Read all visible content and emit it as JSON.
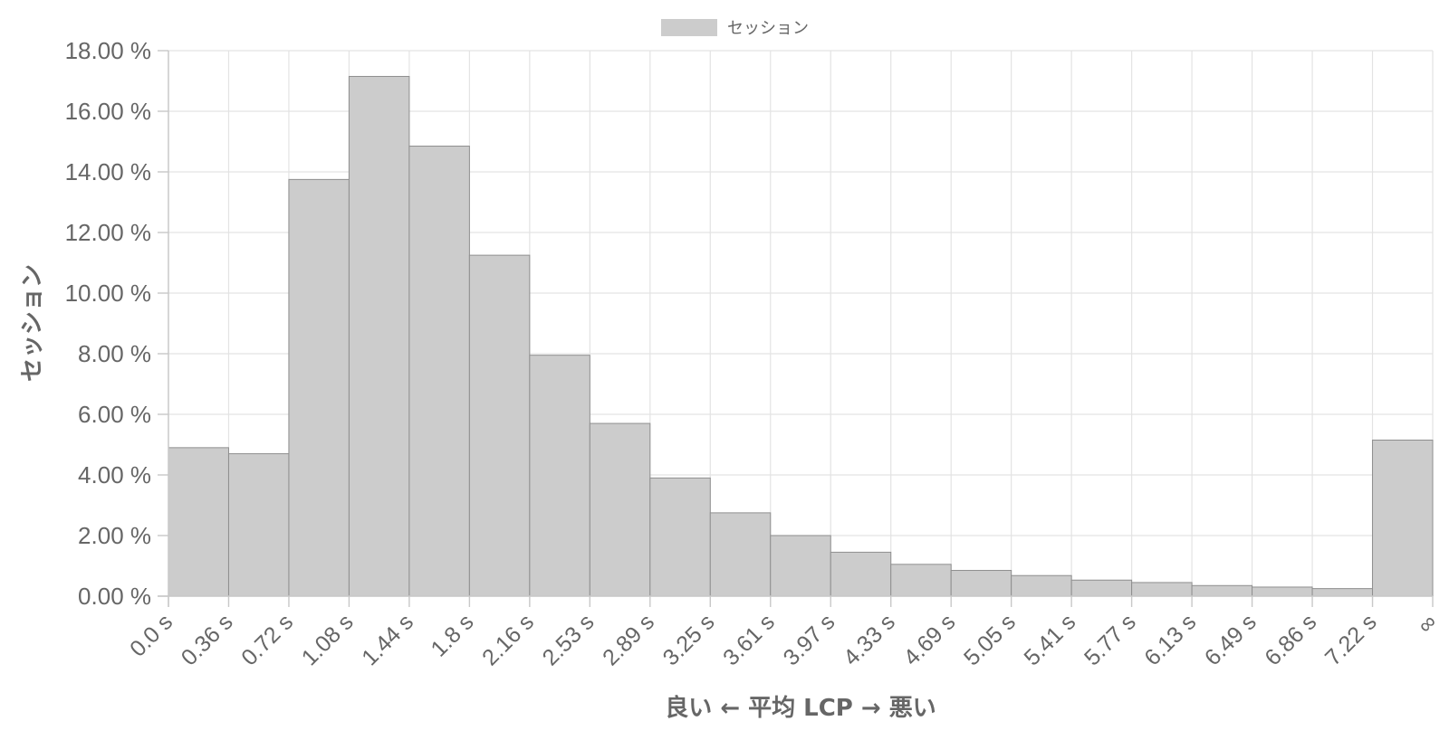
{
  "chart_data": {
    "type": "bar",
    "legend": {
      "label": "セッション",
      "position": "top-center",
      "swatch_color": "#cccccc"
    },
    "xlabel": "良い ← 平均 LCP → 悪い",
    "ylabel": "セッション",
    "ylim": [
      0,
      18
    ],
    "y_ticks": [
      {
        "value": 0,
        "label": "0.00 %"
      },
      {
        "value": 2,
        "label": "2.00 %"
      },
      {
        "value": 4,
        "label": "4.00 %"
      },
      {
        "value": 6,
        "label": "6.00 %"
      },
      {
        "value": 8,
        "label": "8.00 %"
      },
      {
        "value": 10,
        "label": "10.00 %"
      },
      {
        "value": 12,
        "label": "12.00 %"
      },
      {
        "value": 14,
        "label": "14.00 %"
      },
      {
        "value": 16,
        "label": "16.00 %"
      },
      {
        "value": 18,
        "label": "18.00 %"
      }
    ],
    "x_edges": [
      "0.0 s",
      "0.36 s",
      "0.72 s",
      "1.08 s",
      "1.44 s",
      "1.8 s",
      "2.16 s",
      "2.53 s",
      "2.89 s",
      "3.25 s",
      "3.61 s",
      "3.97 s",
      "4.33 s",
      "4.69 s",
      "5.05 s",
      "5.41 s",
      "5.77 s",
      "6.13 s",
      "6.49 s",
      "6.86 s",
      "7.22 s",
      "∞"
    ],
    "series": [
      {
        "name": "セッション",
        "color": "#cccccc",
        "border_color": "#8f8f8f",
        "values": [
          4.9,
          4.7,
          13.75,
          17.15,
          14.85,
          11.25,
          7.95,
          5.7,
          3.9,
          2.75,
          2.0,
          1.45,
          1.05,
          0.85,
          0.68,
          0.53,
          0.45,
          0.35,
          0.3,
          0.25,
          5.15
        ]
      }
    ],
    "grid": true
  }
}
